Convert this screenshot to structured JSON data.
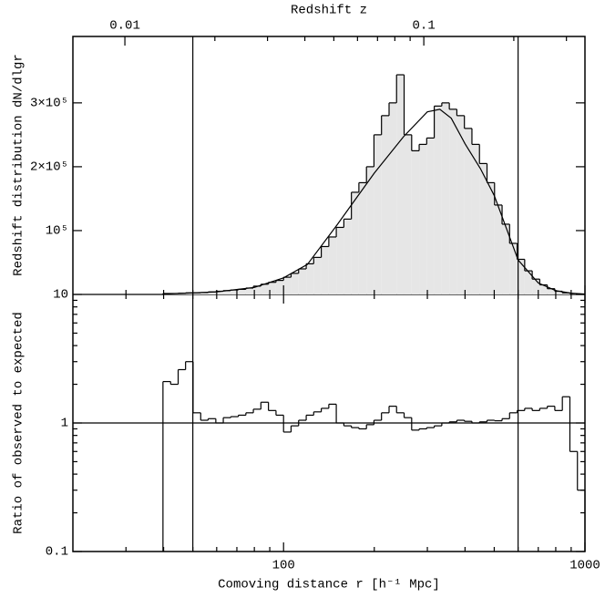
{
  "chart_data": [
    {
      "type": "histogram",
      "x2label": "Redshift z",
      "ylabel": "Redshift distribution dN/dlgr",
      "bins": [
        39.8,
        42.2,
        44.7,
        47.3,
        50.1,
        53.1,
        56.2,
        59.6,
        63.1,
        66.8,
        70.8,
        75.0,
        79.4,
        84.1,
        89.1,
        94.4,
        100,
        105.9,
        112.2,
        118.9,
        125.9,
        133.4,
        141.3,
        149.6,
        158.5,
        167.9,
        177.8,
        188.4,
        199.5,
        211.3,
        223.9,
        237.1,
        251.2,
        266.1,
        281.8,
        298.5,
        316.2,
        335.0,
        354.8,
        375.8,
        398.1,
        421.7,
        446.7,
        473.2,
        501.2,
        530.9,
        562.3,
        595.7,
        631.0,
        668.3,
        707.9,
        749.9,
        794.3,
        841.4,
        891.3,
        944.1,
        1000
      ],
      "values": [
        1500,
        1500,
        2000,
        2500,
        2500,
        3000,
        4000,
        5000,
        6000,
        7000,
        8000,
        10000,
        13000,
        16000,
        19000,
        22000,
        27000,
        33000,
        40000,
        48000,
        58000,
        75000,
        90000,
        105000,
        118000,
        160000,
        175000,
        200000,
        250000,
        280000,
        300000,
        344000,
        250000,
        225000,
        235000,
        245000,
        295000,
        300000,
        290000,
        280000,
        260000,
        235000,
        205000,
        175000,
        140000,
        110000,
        80000,
        55000,
        37000,
        24000,
        15000,
        9000,
        5000,
        2500,
        1200,
        500
      ],
      "color": "#e6e6e6",
      "model": {
        "x": [
          40,
          60,
          80,
          100,
          120,
          150,
          200,
          250,
          300,
          330,
          360,
          400,
          450,
          500,
          600,
          700,
          800,
          900,
          1000
        ],
        "values": [
          500,
          4000,
          11000,
          26000,
          47000,
          108000,
          190000,
          247000,
          286000,
          290000,
          276000,
          236000,
          197000,
          155000,
          54000,
          18000,
          6000,
          2000,
          500
        ]
      },
      "xlim": [
        20,
        1000
      ],
      "xscale": "log",
      "ylim": [
        0,
        404000
      ],
      "yticks": [
        {
          "value": 100000,
          "label": "10⁵"
        },
        {
          "value": 200000,
          "label": "2×10⁵"
        },
        {
          "value": 300000,
          "label": "3×10⁵"
        }
      ],
      "x2lim": [
        0.0067,
        0.346
      ],
      "x2scale": "log",
      "x2ticks": [
        0.01,
        0.1
      ],
      "x2minorticks": [
        0.02,
        0.03,
        0.04,
        0.05,
        0.06,
        0.07,
        0.08,
        0.09,
        0.2,
        0.3
      ],
      "vlines": [
        50,
        600
      ]
    },
    {
      "type": "histogram",
      "xlabel": "Comoving distance r [h⁻¹ Mpc]",
      "ylabel": "Ratio of observed to expected",
      "bins": [
        39.8,
        42.2,
        44.7,
        47.3,
        50.1,
        53.1,
        56.2,
        59.6,
        63.1,
        66.8,
        70.8,
        75.0,
        79.4,
        84.1,
        89.1,
        94.4,
        100,
        105.9,
        112.2,
        118.9,
        125.9,
        133.4,
        141.3,
        149.6,
        158.5,
        167.9,
        177.8,
        188.4,
        199.5,
        211.3,
        223.9,
        237.1,
        251.2,
        266.1,
        281.8,
        298.5,
        316.2,
        335.0,
        354.8,
        375.8,
        398.1,
        421.7,
        446.7,
        473.2,
        501.2,
        530.9,
        562.3,
        595.7,
        631.0,
        668.3,
        707.9,
        749.9,
        794.3,
        841.4,
        891.3,
        944.1,
        1000
      ],
      "values": [
        2.1,
        2.0,
        2.6,
        3.0,
        1.2,
        1.05,
        1.08,
        1.0,
        1.1,
        1.12,
        1.15,
        1.2,
        1.28,
        1.45,
        1.25,
        1.15,
        0.85,
        0.95,
        1.05,
        1.15,
        1.22,
        1.3,
        1.4,
        1.0,
        0.95,
        0.92,
        0.9,
        0.97,
        1.05,
        1.2,
        1.35,
        1.2,
        1.1,
        0.88,
        0.9,
        0.92,
        0.95,
        1.0,
        1.02,
        1.05,
        1.03,
        1.0,
        1.02,
        1.05,
        1.04,
        1.08,
        1.2,
        1.25,
        1.3,
        1.25,
        1.3,
        1.35,
        1.25,
        1.6,
        0.6,
        0.3
      ],
      "xlim": [
        20,
        1000
      ],
      "xscale": "log",
      "xticks": [
        100,
        1000
      ],
      "xminorticks": [
        30,
        40,
        50,
        60,
        70,
        80,
        90,
        200,
        300,
        400,
        500,
        600,
        700,
        800,
        900
      ],
      "ylim": [
        0.1,
        10
      ],
      "yscale": "log",
      "yticks": [
        0.1,
        1,
        10
      ],
      "yminorticks": [
        0.2,
        0.3,
        0.4,
        0.5,
        0.6,
        0.7,
        0.8,
        0.9,
        2,
        3,
        4,
        5,
        6,
        7,
        8,
        9
      ],
      "hline": 1,
      "vlines": [
        50,
        600
      ]
    }
  ]
}
